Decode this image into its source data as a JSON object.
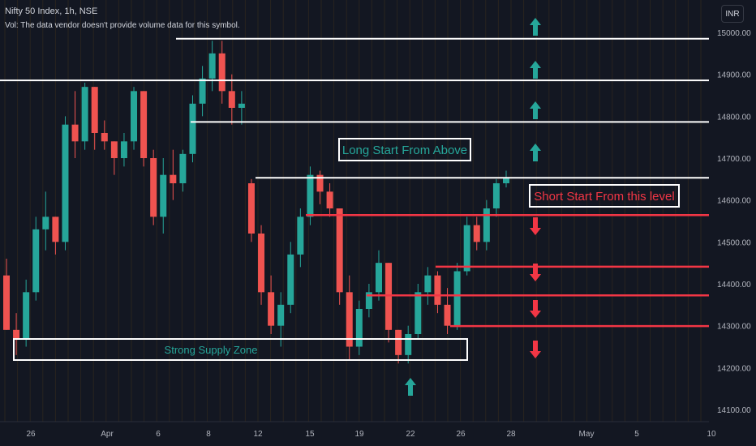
{
  "header": {
    "title": "Nifty 50 Index, 1h, NSE",
    "vol_note": "Vol: The data vendor doesn't provide volume data for this symbol.",
    "currency": "INR"
  },
  "colors": {
    "background": "#131722",
    "up": "#26a69a",
    "down": "#ef5350",
    "level_white": "#ffffff",
    "level_red": "#f23645",
    "grid": "#2a2e39",
    "axis_text": "#b2b5be"
  },
  "chart_data": {
    "type": "candlestick",
    "ylim": [
      14060,
      15030
    ],
    "y_ticks": [
      14100,
      14200,
      14300,
      14400,
      14500,
      14600,
      14700,
      14800,
      14900,
      15000
    ],
    "y_tick_labels": [
      "14100.00",
      "14200.00",
      "14300.00",
      "14400.00",
      "14500.00",
      "14600.00",
      "14700.00",
      "14800.00",
      "14900.00",
      "15000.00"
    ],
    "x_ticks": [
      "26",
      "Apr",
      "6",
      "8",
      "12",
      "15",
      "19",
      "22",
      "26",
      "28",
      "May",
      "5",
      "10"
    ],
    "levels": [
      {
        "label": "14985.05",
        "value": 14985.05,
        "color": "white",
        "start": "Apr 8"
      },
      {
        "label": "14885.50",
        "value": 14885.5,
        "color": "white",
        "start": "chart start"
      },
      {
        "label": "14786.40",
        "value": 14786.4,
        "color": "white",
        "start": "Apr 7"
      },
      {
        "label": "14661.75",
        "value": 14661.75,
        "color": "white",
        "start": "Apr 12"
      },
      {
        "label": "14653.05",
        "value": 14653.05,
        "color": "white",
        "start": "Apr 12",
        "current_price": true
      },
      {
        "label": "14564.15",
        "value": 14564.15,
        "color": "red",
        "start": "Apr 15"
      },
      {
        "label": "14441.00",
        "value": 14441.0,
        "color": "red",
        "start": "Apr 23"
      },
      {
        "label": "14372.40",
        "value": 14372.4,
        "color": "red",
        "start": "Apr 19"
      },
      {
        "label": "14299.10",
        "value": 14299.1,
        "color": "red",
        "start": "Apr 26"
      }
    ],
    "annotations": {
      "long": "Long Start From Above",
      "short": "Short Start From this level",
      "supply_zone": "Strong Supply Zone"
    },
    "supply_zone_range": [
      14218,
      14265
    ],
    "candles_approx": [
      [
        14420,
        14460,
        14320,
        14290
      ],
      [
        14290,
        14330,
        14230,
        14270
      ],
      [
        14270,
        14410,
        14250,
        14380
      ],
      [
        14380,
        14560,
        14360,
        14530
      ],
      [
        14530,
        14620,
        14480,
        14560
      ],
      [
        14560,
        14540,
        14470,
        14500
      ],
      [
        14500,
        14800,
        14480,
        14780
      ],
      [
        14780,
        14860,
        14700,
        14740
      ],
      [
        14740,
        14880,
        14720,
        14870
      ],
      [
        14870,
        14830,
        14720,
        14760
      ],
      [
        14760,
        14790,
        14720,
        14740
      ],
      [
        14740,
        14740,
        14660,
        14700
      ],
      [
        14700,
        14760,
        14680,
        14740
      ],
      [
        14740,
        14870,
        14720,
        14860
      ],
      [
        14860,
        14750,
        14680,
        14700
      ],
      [
        14700,
        14720,
        14540,
        14560
      ],
      [
        14560,
        14700,
        14520,
        14660
      ],
      [
        14660,
        14720,
        14600,
        14640
      ],
      [
        14640,
        14720,
        14620,
        14710
      ],
      [
        14710,
        14850,
        14690,
        14830
      ],
      [
        14830,
        14920,
        14800,
        14890
      ],
      [
        14890,
        14980,
        14860,
        14950
      ],
      [
        14950,
        14980,
        14830,
        14860
      ],
      [
        14860,
        14900,
        14780,
        14820
      ],
      [
        14820,
        14860,
        14780,
        14830
      ],
      [
        14640,
        14650,
        14500,
        14520
      ],
      [
        14520,
        14540,
        14350,
        14380
      ],
      [
        14380,
        14420,
        14280,
        14300
      ],
      [
        14300,
        14380,
        14250,
        14350
      ],
      [
        14350,
        14500,
        14330,
        14470
      ],
      [
        14470,
        14580,
        14440,
        14560
      ],
      [
        14560,
        14680,
        14540,
        14660
      ],
      [
        14660,
        14670,
        14590,
        14620
      ],
      [
        14620,
        14640,
        14560,
        14580
      ],
      [
        14580,
        14560,
        14350,
        14380
      ],
      [
        14380,
        14420,
        14220,
        14250
      ],
      [
        14250,
        14360,
        14230,
        14340
      ],
      [
        14340,
        14400,
        14320,
        14380
      ],
      [
        14380,
        14480,
        14360,
        14450
      ],
      [
        14450,
        14360,
        14260,
        14290
      ],
      [
        14290,
        14280,
        14210,
        14230
      ],
      [
        14230,
        14300,
        14210,
        14280
      ],
      [
        14280,
        14400,
        14270,
        14380
      ],
      [
        14380,
        14440,
        14350,
        14420
      ],
      [
        14420,
        14430,
        14330,
        14350
      ],
      [
        14350,
        14390,
        14280,
        14300
      ],
      [
        14300,
        14450,
        14290,
        14430
      ],
      [
        14430,
        14560,
        14420,
        14540
      ],
      [
        14540,
        14560,
        14480,
        14500
      ],
      [
        14500,
        14600,
        14480,
        14580
      ],
      [
        14580,
        14650,
        14560,
        14640
      ],
      [
        14640,
        14670,
        14630,
        14653
      ]
    ]
  }
}
